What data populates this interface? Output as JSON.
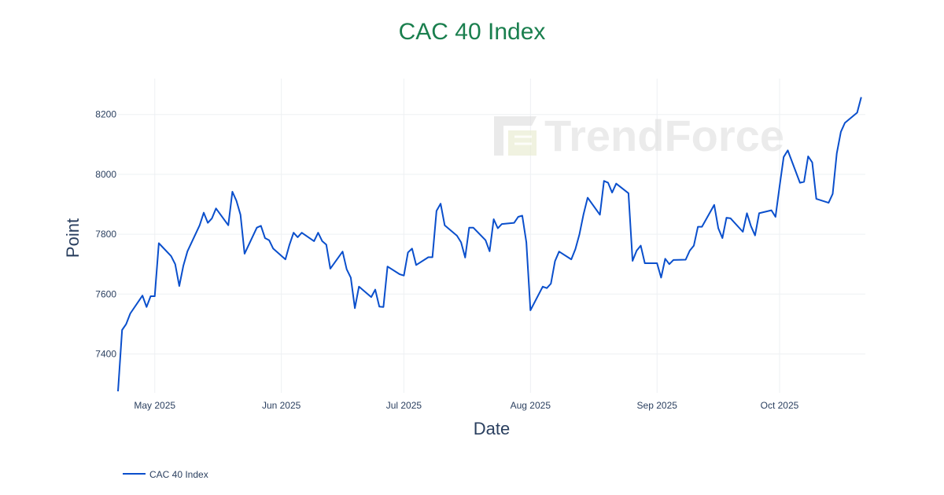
{
  "chart_data": {
    "type": "line",
    "title": "CAC 40 Index",
    "xlabel": "Date",
    "ylabel": "Point",
    "x_ticks": [
      {
        "date": "2025-05-01",
        "label": "May 2025"
      },
      {
        "date": "2025-06-01",
        "label": "Jun 2025"
      },
      {
        "date": "2025-07-01",
        "label": "Jul 2025"
      },
      {
        "date": "2025-08-01",
        "label": "Aug 2025"
      },
      {
        "date": "2025-09-01",
        "label": "Sep 2025"
      },
      {
        "date": "2025-10-01",
        "label": "Oct 2025"
      }
    ],
    "y_ticks": [
      7400,
      7600,
      7800,
      8000,
      8200
    ],
    "xlim": [
      "2025-04-22",
      "2025-10-22"
    ],
    "ylim": [
      7270,
      8320
    ],
    "grid": true,
    "legend_position": "bottom-left",
    "series": [
      {
        "name": "CAC 40 Index",
        "color": "#0a4fcc",
        "points": [
          [
            "2025-04-22",
            7275
          ],
          [
            "2025-04-23",
            7480
          ],
          [
            "2025-04-24",
            7500
          ],
          [
            "2025-04-25",
            7535
          ],
          [
            "2025-04-28",
            7595
          ],
          [
            "2025-04-29",
            7557
          ],
          [
            "2025-04-30",
            7593
          ],
          [
            "2025-05-01",
            7593
          ],
          [
            "2025-05-02",
            7770
          ],
          [
            "2025-05-05",
            7727
          ],
          [
            "2025-05-06",
            7700
          ],
          [
            "2025-05-07",
            7627
          ],
          [
            "2025-05-08",
            7695
          ],
          [
            "2025-05-09",
            7743
          ],
          [
            "2025-05-12",
            7830
          ],
          [
            "2025-05-13",
            7872
          ],
          [
            "2025-05-14",
            7838
          ],
          [
            "2025-05-15",
            7853
          ],
          [
            "2025-05-16",
            7886
          ],
          [
            "2025-05-19",
            7830
          ],
          [
            "2025-05-20",
            7942
          ],
          [
            "2025-05-21",
            7912
          ],
          [
            "2025-05-22",
            7865
          ],
          [
            "2025-05-23",
            7735
          ],
          [
            "2025-05-26",
            7822
          ],
          [
            "2025-05-27",
            7828
          ],
          [
            "2025-05-28",
            7787
          ],
          [
            "2025-05-29",
            7780
          ],
          [
            "2025-05-30",
            7752
          ],
          [
            "2025-06-02",
            7716
          ],
          [
            "2025-06-03",
            7765
          ],
          [
            "2025-06-04",
            7805
          ],
          [
            "2025-06-05",
            7790
          ],
          [
            "2025-06-06",
            7805
          ],
          [
            "2025-06-09",
            7777
          ],
          [
            "2025-06-10",
            7805
          ],
          [
            "2025-06-11",
            7777
          ],
          [
            "2025-06-12",
            7765
          ],
          [
            "2025-06-13",
            7685
          ],
          [
            "2025-06-16",
            7742
          ],
          [
            "2025-06-17",
            7683
          ],
          [
            "2025-06-18",
            7655
          ],
          [
            "2025-06-19",
            7553
          ],
          [
            "2025-06-20",
            7625
          ],
          [
            "2025-06-23",
            7590
          ],
          [
            "2025-06-24",
            7615
          ],
          [
            "2025-06-25",
            7558
          ],
          [
            "2025-06-26",
            7557
          ],
          [
            "2025-06-27",
            7692
          ],
          [
            "2025-06-30",
            7666
          ],
          [
            "2025-07-01",
            7662
          ],
          [
            "2025-07-02",
            7739
          ],
          [
            "2025-07-03",
            7752
          ],
          [
            "2025-07-04",
            7697
          ],
          [
            "2025-07-07",
            7723
          ],
          [
            "2025-07-08",
            7723
          ],
          [
            "2025-07-09",
            7878
          ],
          [
            "2025-07-10",
            7902
          ],
          [
            "2025-07-11",
            7830
          ],
          [
            "2025-07-14",
            7795
          ],
          [
            "2025-07-15",
            7773
          ],
          [
            "2025-07-16",
            7722
          ],
          [
            "2025-07-17",
            7822
          ],
          [
            "2025-07-18",
            7822
          ],
          [
            "2025-07-21",
            7780
          ],
          [
            "2025-07-22",
            7743
          ],
          [
            "2025-07-23",
            7850
          ],
          [
            "2025-07-24",
            7820
          ],
          [
            "2025-07-25",
            7834
          ],
          [
            "2025-07-28",
            7838
          ],
          [
            "2025-07-29",
            7858
          ],
          [
            "2025-07-30",
            7862
          ],
          [
            "2025-07-31",
            7773
          ],
          [
            "2025-08-01",
            7546
          ],
          [
            "2025-08-04",
            7625
          ],
          [
            "2025-08-05",
            7620
          ],
          [
            "2025-08-06",
            7635
          ],
          [
            "2025-08-07",
            7710
          ],
          [
            "2025-08-08",
            7742
          ],
          [
            "2025-08-11",
            7716
          ],
          [
            "2025-08-12",
            7750
          ],
          [
            "2025-08-13",
            7800
          ],
          [
            "2025-08-14",
            7867
          ],
          [
            "2025-08-15",
            7922
          ],
          [
            "2025-08-18",
            7865
          ],
          [
            "2025-08-19",
            7978
          ],
          [
            "2025-08-20",
            7972
          ],
          [
            "2025-08-21",
            7939
          ],
          [
            "2025-08-22",
            7969
          ],
          [
            "2025-08-25",
            7937
          ],
          [
            "2025-08-26",
            7711
          ],
          [
            "2025-08-27",
            7745
          ],
          [
            "2025-08-28",
            7762
          ],
          [
            "2025-08-29",
            7703
          ],
          [
            "2025-09-01",
            7703
          ],
          [
            "2025-09-02",
            7655
          ],
          [
            "2025-09-03",
            7718
          ],
          [
            "2025-09-04",
            7700
          ],
          [
            "2025-09-05",
            7714
          ],
          [
            "2025-09-08",
            7715
          ],
          [
            "2025-09-09",
            7745
          ],
          [
            "2025-09-10",
            7762
          ],
          [
            "2025-09-11",
            7825
          ],
          [
            "2025-09-12",
            7825
          ],
          [
            "2025-09-15",
            7898
          ],
          [
            "2025-09-16",
            7820
          ],
          [
            "2025-09-17",
            7787
          ],
          [
            "2025-09-18",
            7855
          ],
          [
            "2025-09-19",
            7853
          ],
          [
            "2025-09-22",
            7808
          ],
          [
            "2025-09-23",
            7870
          ],
          [
            "2025-09-24",
            7827
          ],
          [
            "2025-09-25",
            7796
          ],
          [
            "2025-09-26",
            7870
          ],
          [
            "2025-09-29",
            7880
          ],
          [
            "2025-09-30",
            7858
          ],
          [
            "2025-10-01",
            7960
          ],
          [
            "2025-10-02",
            8058
          ],
          [
            "2025-10-03",
            8080
          ],
          [
            "2025-10-06",
            7972
          ],
          [
            "2025-10-07",
            7975
          ],
          [
            "2025-10-08",
            8060
          ],
          [
            "2025-10-09",
            8040
          ],
          [
            "2025-10-10",
            7918
          ],
          [
            "2025-10-13",
            7905
          ],
          [
            "2025-10-14",
            7935
          ],
          [
            "2025-10-15",
            8070
          ],
          [
            "2025-10-16",
            8142
          ],
          [
            "2025-10-17",
            8172
          ],
          [
            "2025-10-20",
            8206
          ],
          [
            "2025-10-21",
            8258
          ]
        ]
      }
    ]
  },
  "title_color": "#1a7f4e",
  "watermark_text": "TrendForce"
}
